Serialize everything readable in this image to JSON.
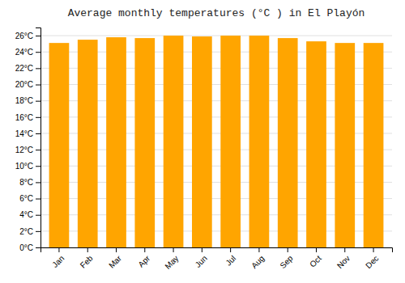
{
  "chart_data": {
    "type": "bar",
    "title": "Average monthly temperatures (°C ) in El Playón",
    "categories": [
      "Jan",
      "Feb",
      "Mar",
      "Apr",
      "May",
      "Jun",
      "Jul",
      "Aug",
      "Sep",
      "Oct",
      "Nov",
      "Dec"
    ],
    "values": [
      25.1,
      25.5,
      25.8,
      25.7,
      26.0,
      25.9,
      26.0,
      26.0,
      25.7,
      25.3,
      25.1,
      25.1
    ],
    "color": "#FFA500",
    "ylim": [
      0,
      27
    ],
    "yticks": [
      {
        "value": 0,
        "label": "0°C"
      },
      {
        "value": 2,
        "label": "2°C"
      },
      {
        "value": 4,
        "label": "4°C"
      },
      {
        "value": 6,
        "label": "6°C"
      },
      {
        "value": 8,
        "label": "8°C"
      },
      {
        "value": 10,
        "label": "10°C"
      },
      {
        "value": 12,
        "label": "12°C"
      },
      {
        "value": 14,
        "label": "14°C"
      },
      {
        "value": 16,
        "label": "16°C"
      },
      {
        "value": 18,
        "label": "18°C"
      },
      {
        "value": 20,
        "label": "20°C"
      },
      {
        "value": 22,
        "label": "22°C"
      },
      {
        "value": 24,
        "label": "24°C"
      },
      {
        "value": 26,
        "label": "26°C"
      }
    ],
    "grid": true
  }
}
